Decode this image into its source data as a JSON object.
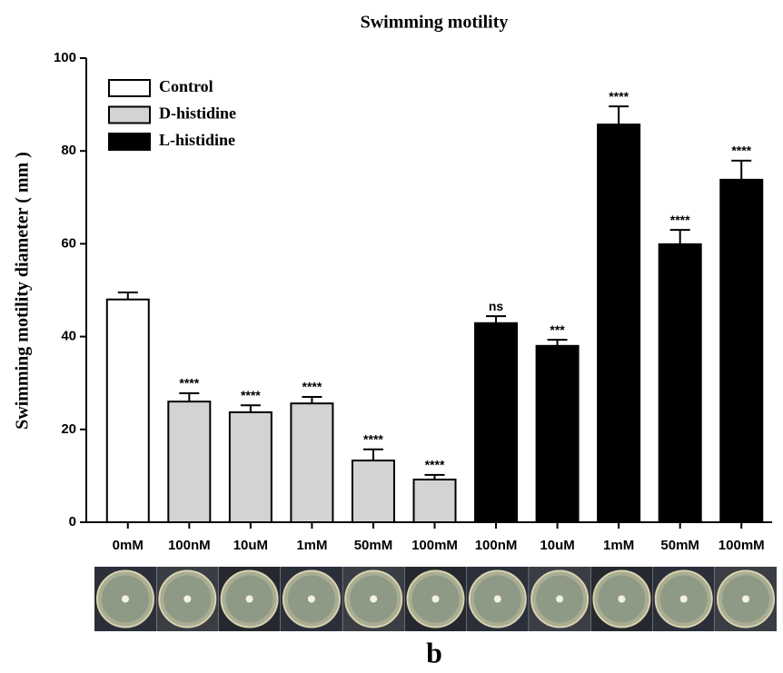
{
  "chart_data": {
    "type": "bar",
    "title": "Swimming motility",
    "y_label": "Swimming motility diameter ( mm )",
    "panel_label": "b",
    "categories": [
      "0mM",
      "100nM",
      "10uM",
      "1mM",
      "50mM",
      "100mM",
      "100nM",
      "10uM",
      "1mM",
      "50mM",
      "100mM"
    ],
    "series": [
      {
        "name": "Control",
        "color": "#ffffff",
        "values": [
          48,
          null,
          null,
          null,
          null,
          null,
          null,
          null,
          null,
          null,
          null
        ],
        "errors": [
          1.5,
          null,
          null,
          null,
          null,
          null,
          null,
          null,
          null,
          null,
          null
        ]
      },
      {
        "name": "D-histidine",
        "color": "#d3d3d3",
        "values": [
          null,
          26,
          23.7,
          25.6,
          13.3,
          9.2,
          null,
          null,
          null,
          null,
          null
        ],
        "errors": [
          null,
          1.8,
          1.5,
          1.4,
          2.4,
          1.0,
          null,
          null,
          null,
          null,
          null
        ]
      },
      {
        "name": "L-histidine",
        "color": "#000000",
        "values": [
          null,
          null,
          null,
          null,
          null,
          null,
          42.9,
          38,
          85.7,
          59.9,
          73.8
        ],
        "errors": [
          null,
          null,
          null,
          null,
          null,
          null,
          1.5,
          1.3,
          3.9,
          3.1,
          4.1
        ]
      }
    ],
    "annotations": [
      null,
      "****",
      "****",
      "****",
      "****",
      "****",
      "ns",
      "***",
      "****",
      "****",
      "****"
    ],
    "ylim": [
      0,
      100
    ],
    "yticks": [
      0,
      20,
      40,
      60,
      80,
      100
    ],
    "grid": false
  }
}
